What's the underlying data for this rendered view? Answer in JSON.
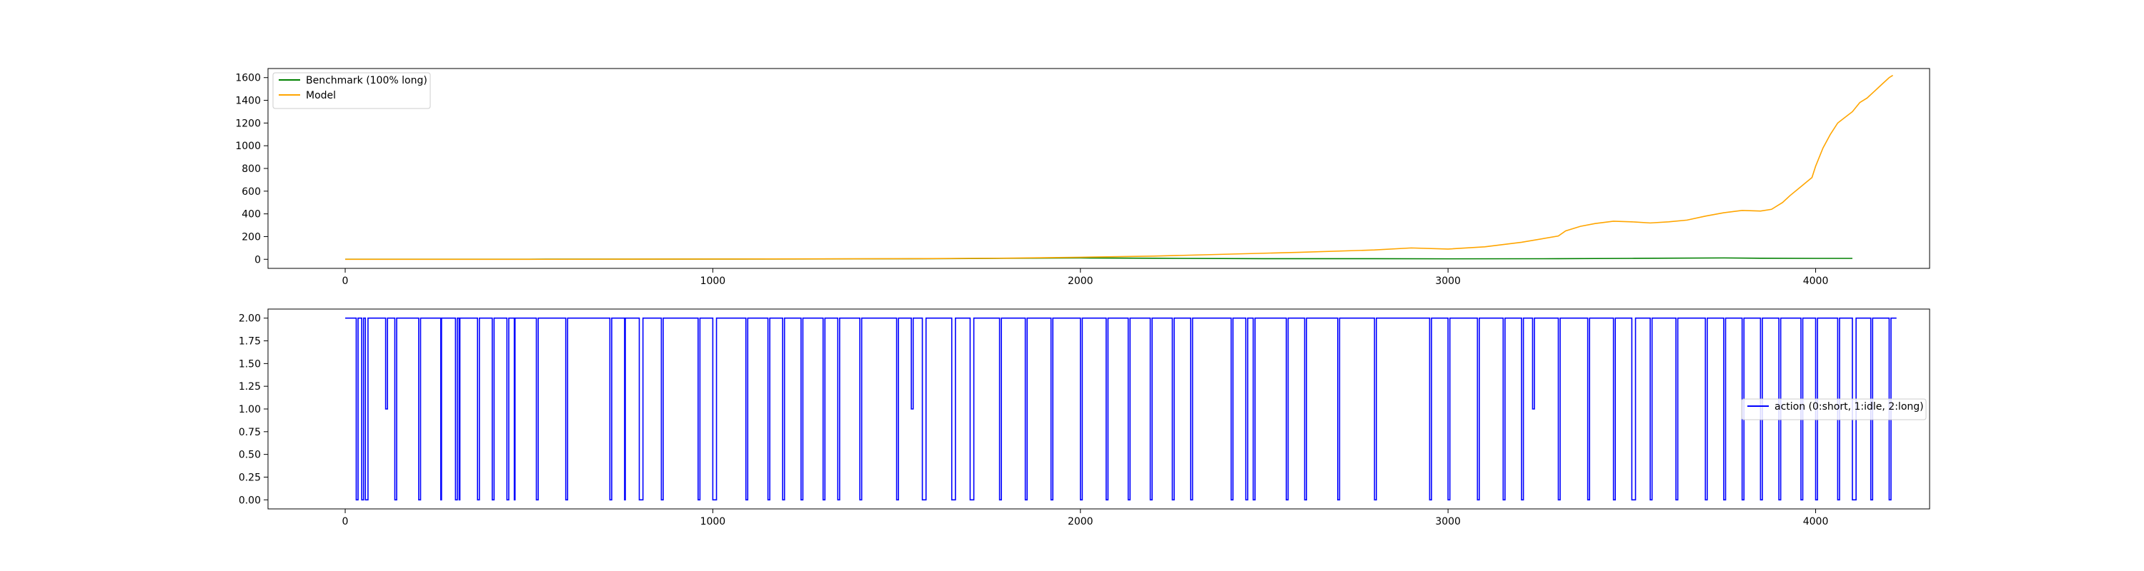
{
  "chart_data": [
    {
      "type": "line",
      "title": "",
      "xlabel": "",
      "ylabel": "",
      "xlim": [
        -210,
        4310
      ],
      "ylim": [
        -80,
        1680
      ],
      "x_ticks": [
        0,
        1000,
        2000,
        3000,
        4000
      ],
      "y_ticks": [
        0,
        200,
        400,
        600,
        800,
        1000,
        1200,
        1400,
        1600
      ],
      "legend_position": "top-left",
      "series": [
        {
          "name": "Benchmark (100% long)",
          "color": "#008000",
          "points": [
            [
              0,
              1
            ],
            [
              500,
              1
            ],
            [
              1000,
              2
            ],
            [
              1500,
              4
            ],
            [
              1700,
              7
            ],
            [
              2000,
              12
            ],
            [
              2200,
              9
            ],
            [
              2500,
              5
            ],
            [
              2800,
              5
            ],
            [
              3000,
              4
            ],
            [
              3300,
              5
            ],
            [
              3500,
              8
            ],
            [
              3750,
              12
            ],
            [
              3850,
              9
            ],
            [
              4000,
              8
            ],
            [
              4100,
              8
            ]
          ]
        },
        {
          "name": "Model",
          "color": "#ffa500",
          "points": [
            [
              0,
              0
            ],
            [
              500,
              0
            ],
            [
              1000,
              2
            ],
            [
              1500,
              5
            ],
            [
              1800,
              10
            ],
            [
              2000,
              18
            ],
            [
              2200,
              28
            ],
            [
              2400,
              45
            ],
            [
              2600,
              62
            ],
            [
              2800,
              82
            ],
            [
              2900,
              100
            ],
            [
              3000,
              90
            ],
            [
              3100,
              110
            ],
            [
              3200,
              150
            ],
            [
              3300,
              205
            ],
            [
              3320,
              250
            ],
            [
              3360,
              290
            ],
            [
              3400,
              315
            ],
            [
              3450,
              335
            ],
            [
              3500,
              330
            ],
            [
              3550,
              320
            ],
            [
              3600,
              330
            ],
            [
              3650,
              345
            ],
            [
              3700,
              380
            ],
            [
              3750,
              410
            ],
            [
              3800,
              430
            ],
            [
              3850,
              425
            ],
            [
              3880,
              440
            ],
            [
              3910,
              500
            ],
            [
              3930,
              560
            ],
            [
              3960,
              640
            ],
            [
              3990,
              720
            ],
            [
              4000,
              820
            ],
            [
              4020,
              980
            ],
            [
              4040,
              1100
            ],
            [
              4060,
              1200
            ],
            [
              4080,
              1250
            ],
            [
              4100,
              1300
            ],
            [
              4120,
              1380
            ],
            [
              4140,
              1420
            ],
            [
              4160,
              1480
            ],
            [
              4180,
              1540
            ],
            [
              4200,
              1600
            ],
            [
              4210,
              1620
            ]
          ]
        }
      ]
    },
    {
      "type": "line",
      "title": "",
      "xlabel": "",
      "ylabel": "",
      "xlim": [
        -210,
        4310
      ],
      "ylim": [
        -0.1,
        2.1
      ],
      "x_ticks": [
        0,
        1000,
        2000,
        3000,
        4000
      ],
      "y_ticks": [
        "0.00",
        "0.25",
        "0.50",
        "0.75",
        "1.00",
        "1.25",
        "1.50",
        "1.75",
        "2.00"
      ],
      "legend_position": "center-right",
      "step": true,
      "series": [
        {
          "name": "action (0:short, 1:idle, 2:long)",
          "color": "#0000ff",
          "points": [
            [
              0,
              2
            ],
            [
              30,
              0
            ],
            [
              35,
              2
            ],
            [
              45,
              0
            ],
            [
              50,
              2
            ],
            [
              55,
              0
            ],
            [
              62,
              2
            ],
            [
              110,
              1
            ],
            [
              115,
              2
            ],
            [
              135,
              0
            ],
            [
              140,
              2
            ],
            [
              200,
              0
            ],
            [
              205,
              2
            ],
            [
              260,
              0
            ],
            [
              262,
              2
            ],
            [
              300,
              0
            ],
            [
              305,
              2
            ],
            [
              310,
              0
            ],
            [
              312,
              2
            ],
            [
              360,
              0
            ],
            [
              365,
              2
            ],
            [
              400,
              0
            ],
            [
              405,
              2
            ],
            [
              440,
              0
            ],
            [
              445,
              2
            ],
            [
              460,
              0
            ],
            [
              462,
              2
            ],
            [
              520,
              0
            ],
            [
              525,
              2
            ],
            [
              600,
              0
            ],
            [
              605,
              2
            ],
            [
              720,
              0
            ],
            [
              725,
              2
            ],
            [
              760,
              0
            ],
            [
              762,
              2
            ],
            [
              800,
              0
            ],
            [
              810,
              2
            ],
            [
              860,
              0
            ],
            [
              865,
              2
            ],
            [
              960,
              0
            ],
            [
              965,
              2
            ],
            [
              1000,
              0
            ],
            [
              1010,
              2
            ],
            [
              1090,
              0
            ],
            [
              1095,
              2
            ],
            [
              1150,
              0
            ],
            [
              1155,
              2
            ],
            [
              1190,
              0
            ],
            [
              1195,
              2
            ],
            [
              1240,
              0
            ],
            [
              1245,
              2
            ],
            [
              1300,
              0
            ],
            [
              1305,
              2
            ],
            [
              1340,
              0
            ],
            [
              1345,
              2
            ],
            [
              1400,
              0
            ],
            [
              1405,
              2
            ],
            [
              1500,
              0
            ],
            [
              1505,
              2
            ],
            [
              1540,
              1
            ],
            [
              1545,
              2
            ],
            [
              1570,
              0
            ],
            [
              1580,
              2
            ],
            [
              1650,
              0
            ],
            [
              1660,
              2
            ],
            [
              1700,
              0
            ],
            [
              1710,
              2
            ],
            [
              1780,
              0
            ],
            [
              1785,
              2
            ],
            [
              1850,
              0
            ],
            [
              1855,
              2
            ],
            [
              1920,
              0
            ],
            [
              1925,
              2
            ],
            [
              2000,
              0
            ],
            [
              2005,
              2
            ],
            [
              2070,
              0
            ],
            [
              2075,
              2
            ],
            [
              2130,
              0
            ],
            [
              2135,
              2
            ],
            [
              2190,
              0
            ],
            [
              2195,
              2
            ],
            [
              2250,
              0
            ],
            [
              2255,
              2
            ],
            [
              2300,
              0
            ],
            [
              2305,
              2
            ],
            [
              2410,
              0
            ],
            [
              2415,
              2
            ],
            [
              2450,
              0
            ],
            [
              2455,
              2
            ],
            [
              2470,
              0
            ],
            [
              2475,
              2
            ],
            [
              2560,
              0
            ],
            [
              2565,
              2
            ],
            [
              2610,
              0
            ],
            [
              2615,
              2
            ],
            [
              2700,
              0
            ],
            [
              2705,
              2
            ],
            [
              2800,
              0
            ],
            [
              2805,
              2
            ],
            [
              2950,
              0
            ],
            [
              2955,
              2
            ],
            [
              3000,
              0
            ],
            [
              3005,
              2
            ],
            [
              3080,
              0
            ],
            [
              3085,
              2
            ],
            [
              3150,
              0
            ],
            [
              3155,
              2
            ],
            [
              3200,
              0
            ],
            [
              3205,
              2
            ],
            [
              3230,
              1
            ],
            [
              3235,
              2
            ],
            [
              3300,
              0
            ],
            [
              3305,
              2
            ],
            [
              3380,
              0
            ],
            [
              3385,
              2
            ],
            [
              3450,
              0
            ],
            [
              3455,
              2
            ],
            [
              3500,
              0
            ],
            [
              3510,
              2
            ],
            [
              3550,
              0
            ],
            [
              3555,
              2
            ],
            [
              3620,
              0
            ],
            [
              3625,
              2
            ],
            [
              3700,
              0
            ],
            [
              3705,
              2
            ],
            [
              3750,
              0
            ],
            [
              3755,
              2
            ],
            [
              3800,
              0
            ],
            [
              3805,
              2
            ],
            [
              3850,
              0
            ],
            [
              3855,
              2
            ],
            [
              3900,
              0
            ],
            [
              3905,
              2
            ],
            [
              3960,
              0
            ],
            [
              3965,
              2
            ],
            [
              4000,
              0
            ],
            [
              4005,
              2
            ],
            [
              4060,
              0
            ],
            [
              4065,
              2
            ],
            [
              4100,
              0
            ],
            [
              4110,
              2
            ],
            [
              4150,
              0
            ],
            [
              4155,
              2
            ],
            [
              4200,
              0
            ],
            [
              4205,
              2
            ],
            [
              4220,
              2
            ]
          ]
        }
      ]
    }
  ]
}
